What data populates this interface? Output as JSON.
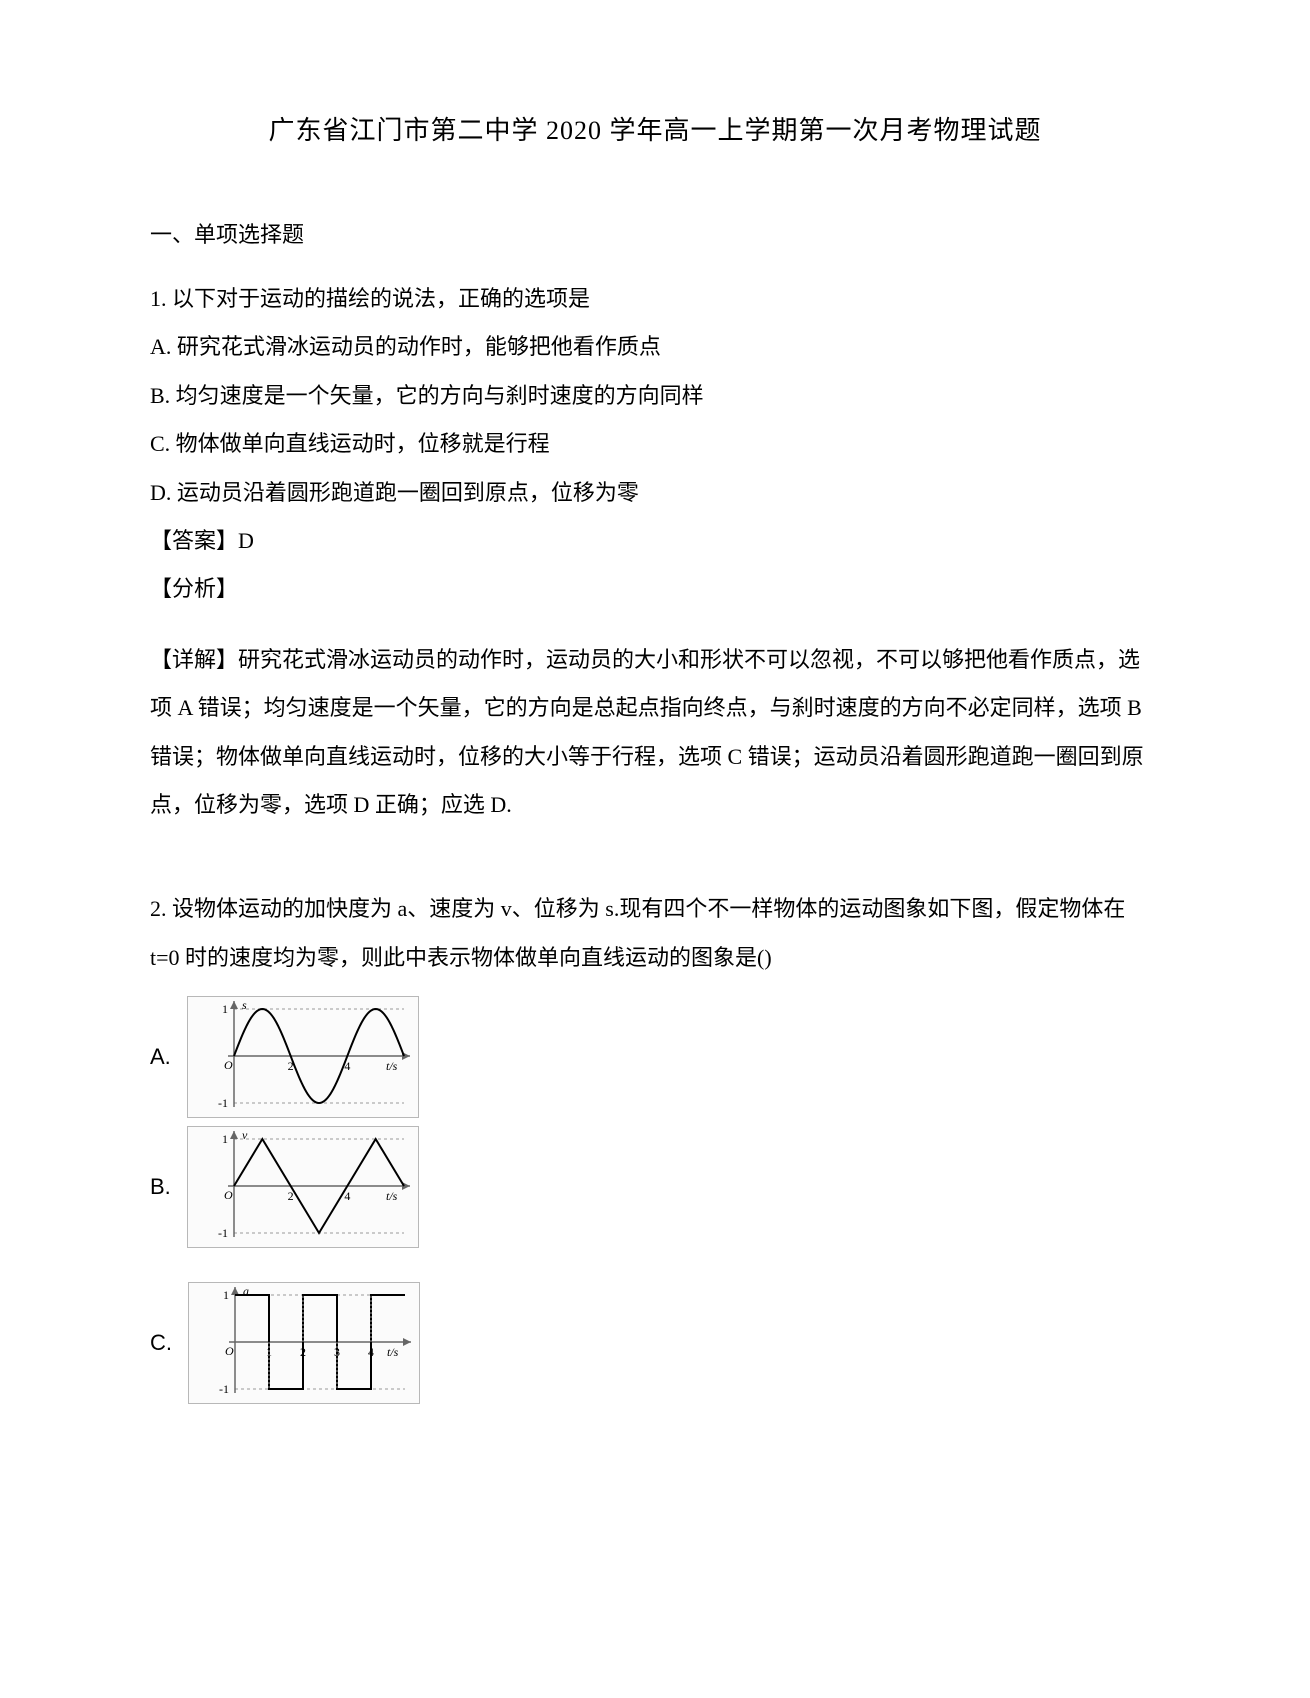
{
  "title": "广东省江门市第二中学 2020 学年高一上学期第一次月考物理试题",
  "section_heading": "一、单项选择题",
  "q1": {
    "stem": "1. 以下对于运动的描绘的说法，正确的选项是",
    "A": "A.  研究花式滑冰运动员的动作时，能够把他看作质点",
    "B": "B.  均匀速度是一个矢量，它的方向与刹时速度的方向同样",
    "C": "C.  物体做单向直线运动时，位移就是行程",
    "D": "D.  运动员沿着圆形跑道跑一圈回到原点，位移为零",
    "answer": "【答案】D",
    "analysis_label": "【分析】",
    "detail": "【详解】研究花式滑冰运动员的动作时，运动员的大小和形状不可以忽视，不可以够把他看作质点，选项 A 错误；均匀速度是一个矢量，它的方向是总起点指向终点，与刹时速度的方向不必定同样，选项 B 错误；物体做单向直线运动时，位移的大小等于行程，选项 C 错误；运动员沿着圆形跑道跑一圈回到原点，位移为零，选项 D 正确；应选 D."
  },
  "q2": {
    "stem": "2. 设物体运动的加快度为 a、速度为 v、位移为 s.现有四个不一样物体的运动图象如下图，假定物体在 t=0 时的速度均为零，则此中表示物体做单向直线运动的图象是()",
    "options": {
      "A": "A.",
      "B": "B.",
      "C": "C."
    }
  },
  "charts": {
    "A": {
      "type": "line",
      "y_axis_label": "s",
      "x_axis_label": "t/s",
      "ylim": [
        -1,
        1
      ],
      "xlim": [
        0,
        6
      ],
      "yticks": [
        -1,
        0,
        1
      ],
      "xticks": [
        0,
        2,
        4,
        6
      ],
      "line_color": "#000000",
      "axis_color": "#666666",
      "background_color": "#fbfbfb",
      "series_x": [
        0,
        1,
        2,
        3,
        4,
        5,
        6
      ],
      "series_y": [
        0,
        1,
        0,
        -1,
        0,
        1,
        0
      ],
      "shape": "sine",
      "line_width": 2,
      "dash_guides": true,
      "font_size": 12
    },
    "B": {
      "type": "line",
      "y_axis_label": "v",
      "x_axis_label": "t/s",
      "ylim": [
        -1,
        1
      ],
      "xlim": [
        0,
        6
      ],
      "yticks": [
        -1,
        0,
        1
      ],
      "xticks": [
        0,
        2,
        4,
        6
      ],
      "line_color": "#000000",
      "axis_color": "#666666",
      "background_color": "#fbfbfb",
      "series_x": [
        0,
        1,
        2,
        3,
        4,
        5,
        6
      ],
      "series_y": [
        0,
        1,
        0,
        -1,
        0,
        1,
        0
      ],
      "shape": "triangle",
      "line_width": 2,
      "dash_guides": true,
      "font_size": 12
    },
    "C": {
      "type": "step",
      "y_axis_label": "a",
      "x_axis_label": "t/s",
      "ylim": [
        -1,
        1
      ],
      "xlim": [
        0,
        5
      ],
      "yticks": [
        -1,
        0,
        1
      ],
      "xticks": [
        0,
        1,
        2,
        3,
        4,
        5
      ],
      "line_color": "#000000",
      "axis_color": "#666666",
      "background_color": "#fbfbfb",
      "series_x": [
        0,
        1,
        1,
        2,
        2,
        3,
        3,
        4,
        4,
        5
      ],
      "series_y": [
        1,
        1,
        -1,
        -1,
        1,
        1,
        -1,
        -1,
        1,
        1
      ],
      "shape": "square-wave",
      "line_width": 2,
      "dash_guides": true,
      "font_size": 12
    }
  },
  "colors": {
    "text": "#000000",
    "border": "#b8b8b8",
    "chart_bg": "#fbfbfb"
  }
}
